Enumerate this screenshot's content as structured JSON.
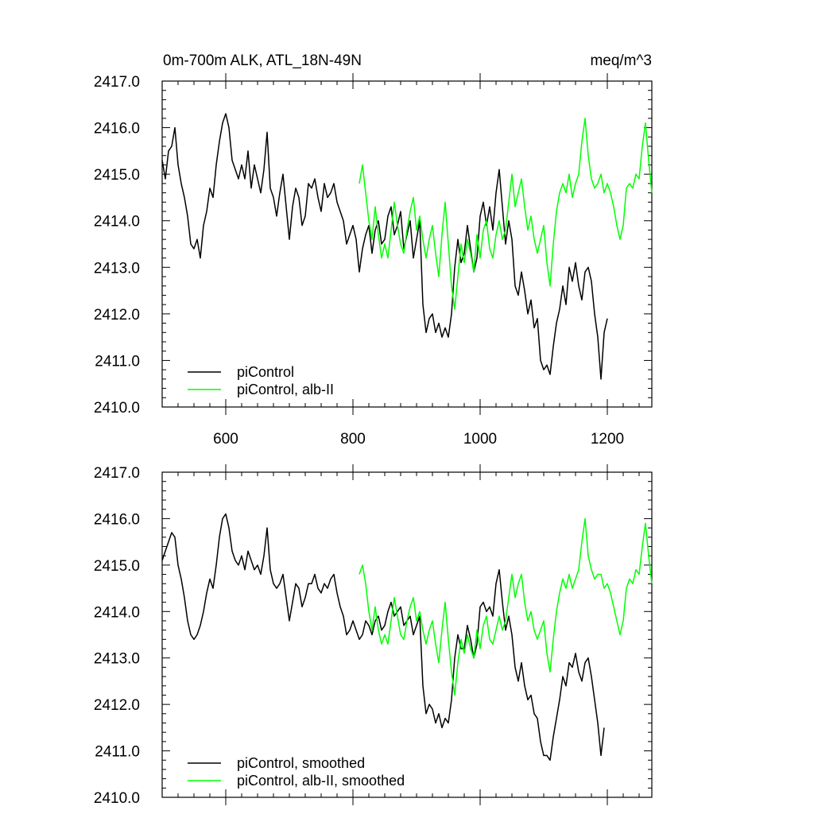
{
  "figure": {
    "title_left": "0m-700m ALK, ATL_18N-49N",
    "title_right": "meq/m^3"
  },
  "chart_data": [
    {
      "type": "line",
      "title": "",
      "xlabel": "",
      "ylabel": "",
      "xlim": [
        500,
        1270
      ],
      "ylim": [
        2410.0,
        2417.0
      ],
      "x_ticks": [
        600,
        800,
        1000,
        1200
      ],
      "y_ticks": [
        2410.0,
        2411.0,
        2412.0,
        2413.0,
        2414.0,
        2415.0,
        2416.0,
        2417.0
      ],
      "y_tick_labels": [
        "2410.0",
        "2411.0",
        "2412.0",
        "2413.0",
        "2414.0",
        "2415.0",
        "2416.0",
        "2417.0"
      ],
      "x_tick_labels_shown": true,
      "grid": false,
      "legend_position": "bottom-left",
      "series": [
        {
          "name": "piControl",
          "color": "#000000",
          "x": [
            500,
            505,
            510,
            515,
            520,
            525,
            530,
            535,
            540,
            545,
            550,
            555,
            560,
            565,
            570,
            575,
            580,
            585,
            590,
            595,
            600,
            605,
            610,
            615,
            620,
            625,
            630,
            635,
            640,
            645,
            650,
            655,
            660,
            665,
            670,
            675,
            680,
            685,
            690,
            695,
            700,
            705,
            710,
            715,
            720,
            725,
            730,
            735,
            740,
            745,
            750,
            755,
            760,
            765,
            770,
            775,
            780,
            785,
            790,
            795,
            800,
            805,
            810,
            815,
            820,
            825,
            830,
            835,
            840,
            845,
            850,
            855,
            860,
            865,
            870,
            875,
            880,
            885,
            890,
            895,
            900,
            905,
            910,
            915,
            920,
            925,
            930,
            935,
            940,
            945,
            950,
            955,
            960,
            965,
            970,
            975,
            980,
            985,
            990,
            995,
            1000,
            1005,
            1010,
            1015,
            1020,
            1025,
            1030,
            1035,
            1040,
            1045,
            1050,
            1055,
            1060,
            1065,
            1070,
            1075,
            1080,
            1085,
            1090,
            1095,
            1100,
            1105,
            1110,
            1115,
            1120,
            1125,
            1130,
            1135,
            1140,
            1145,
            1150,
            1155,
            1160,
            1165,
            1170,
            1175,
            1180,
            1185,
            1190,
            1195,
            1200
          ],
          "values": [
            2415.3,
            2414.9,
            2415.5,
            2415.6,
            2416.0,
            2415.2,
            2414.8,
            2414.5,
            2414.1,
            2413.5,
            2413.4,
            2413.6,
            2413.2,
            2413.9,
            2414.2,
            2414.7,
            2414.5,
            2415.2,
            2415.7,
            2416.1,
            2416.3,
            2416.0,
            2415.3,
            2415.1,
            2414.9,
            2415.2,
            2414.9,
            2415.5,
            2414.7,
            2415.2,
            2414.9,
            2414.6,
            2415.1,
            2415.9,
            2414.7,
            2414.5,
            2414.1,
            2414.6,
            2415.0,
            2414.3,
            2413.6,
            2414.3,
            2414.7,
            2414.5,
            2413.9,
            2414.1,
            2414.8,
            2414.7,
            2414.9,
            2414.5,
            2414.2,
            2414.8,
            2414.5,
            2414.6,
            2414.8,
            2414.4,
            2414.2,
            2414.0,
            2413.5,
            2413.7,
            2413.9,
            2413.6,
            2412.9,
            2413.4,
            2413.7,
            2413.9,
            2413.3,
            2413.8,
            2414.0,
            2413.5,
            2413.6,
            2414.1,
            2414.3,
            2413.7,
            2413.9,
            2414.2,
            2413.4,
            2413.7,
            2414.0,
            2413.2,
            2413.6,
            2414.0,
            2412.2,
            2411.6,
            2411.9,
            2412.0,
            2411.6,
            2411.8,
            2411.5,
            2411.7,
            2411.5,
            2412.0,
            2413.0,
            2413.6,
            2413.1,
            2413.3,
            2413.9,
            2413.4,
            2412.9,
            2413.2,
            2414.1,
            2414.4,
            2413.9,
            2414.3,
            2413.8,
            2414.6,
            2415.1,
            2414.3,
            2413.5,
            2414.0,
            2413.6,
            2412.6,
            2412.4,
            2412.9,
            2412.5,
            2412.0,
            2412.3,
            2411.7,
            2411.9,
            2411.0,
            2410.8,
            2410.9,
            2410.7,
            2411.3,
            2411.8,
            2412.1,
            2412.6,
            2412.2,
            2413.0,
            2412.7,
            2413.1,
            2412.6,
            2412.3,
            2412.9,
            2413.0,
            2412.7,
            2412.0,
            2411.5,
            2410.6,
            2411.6,
            2411.9
          ]
        },
        {
          "name": "piControl, alb-II",
          "color": "#00ff00",
          "x": [
            810,
            815,
            820,
            825,
            830,
            835,
            840,
            845,
            850,
            855,
            860,
            865,
            870,
            875,
            880,
            885,
            890,
            895,
            900,
            905,
            910,
            915,
            920,
            925,
            930,
            935,
            940,
            945,
            950,
            955,
            960,
            965,
            970,
            975,
            980,
            985,
            990,
            995,
            1000,
            1005,
            1010,
            1015,
            1020,
            1025,
            1030,
            1035,
            1040,
            1045,
            1050,
            1055,
            1060,
            1065,
            1070,
            1075,
            1080,
            1085,
            1090,
            1095,
            1100,
            1105,
            1110,
            1115,
            1120,
            1125,
            1130,
            1135,
            1140,
            1145,
            1150,
            1155,
            1160,
            1165,
            1170,
            1175,
            1180,
            1185,
            1190,
            1195,
            1200,
            1205,
            1210,
            1215,
            1220,
            1225,
            1230,
            1235,
            1240,
            1245,
            1250,
            1255,
            1260,
            1265,
            1270
          ],
          "values": [
            2414.8,
            2415.2,
            2414.6,
            2414.0,
            2413.6,
            2414.3,
            2413.7,
            2413.2,
            2413.5,
            2413.2,
            2413.8,
            2414.4,
            2413.9,
            2413.5,
            2413.3,
            2413.8,
            2414.2,
            2414.5,
            2413.8,
            2414.1,
            2413.6,
            2413.2,
            2413.6,
            2413.9,
            2413.3,
            2412.8,
            2413.7,
            2414.4,
            2413.5,
            2412.6,
            2412.1,
            2412.8,
            2413.5,
            2413.1,
            2413.6,
            2413.3,
            2412.9,
            2413.7,
            2413.2,
            2413.8,
            2414.0,
            2413.4,
            2413.2,
            2413.7,
            2414.0,
            2413.6,
            2413.8,
            2414.4,
            2415.0,
            2414.3,
            2414.6,
            2414.9,
            2414.3,
            2413.8,
            2414.1,
            2413.6,
            2413.3,
            2413.6,
            2413.9,
            2413.1,
            2412.6,
            2413.5,
            2414.2,
            2414.6,
            2414.8,
            2414.6,
            2415.0,
            2414.5,
            2414.8,
            2415.0,
            2415.7,
            2416.2,
            2415.4,
            2414.9,
            2414.7,
            2414.8,
            2415.0,
            2414.6,
            2414.8,
            2414.6,
            2414.3,
            2413.9,
            2413.6,
            2413.9,
            2414.7,
            2414.8,
            2414.7,
            2415.0,
            2414.9,
            2415.6,
            2416.1,
            2415.3,
            2414.6
          ]
        }
      ]
    },
    {
      "type": "line",
      "title": "",
      "xlabel": "",
      "ylabel": "",
      "xlim": [
        500,
        1270
      ],
      "ylim": [
        2410.0,
        2417.0
      ],
      "x_ticks": [
        600,
        800,
        1000,
        1200
      ],
      "y_ticks": [
        2410.0,
        2411.0,
        2412.0,
        2413.0,
        2414.0,
        2415.0,
        2416.0,
        2417.0
      ],
      "y_tick_labels": [
        "2410.0",
        "2411.0",
        "2412.0",
        "2413.0",
        "2414.0",
        "2415.0",
        "2416.0",
        "2417.0"
      ],
      "x_tick_labels_shown": false,
      "grid": false,
      "legend_position": "bottom-left",
      "series": [
        {
          "name": "piControl, smoothed",
          "color": "#000000",
          "x": [
            500,
            505,
            510,
            515,
            520,
            525,
            530,
            535,
            540,
            545,
            550,
            555,
            560,
            565,
            570,
            575,
            580,
            585,
            590,
            595,
            600,
            605,
            610,
            615,
            620,
            625,
            630,
            635,
            640,
            645,
            650,
            655,
            660,
            665,
            670,
            675,
            680,
            685,
            690,
            695,
            700,
            705,
            710,
            715,
            720,
            725,
            730,
            735,
            740,
            745,
            750,
            755,
            760,
            765,
            770,
            775,
            780,
            785,
            790,
            795,
            800,
            805,
            810,
            815,
            820,
            825,
            830,
            835,
            840,
            845,
            850,
            855,
            860,
            865,
            870,
            875,
            880,
            885,
            890,
            895,
            900,
            905,
            910,
            915,
            920,
            925,
            930,
            935,
            940,
            945,
            950,
            955,
            960,
            965,
            970,
            975,
            980,
            985,
            990,
            995,
            1000,
            1005,
            1010,
            1015,
            1020,
            1025,
            1030,
            1035,
            1040,
            1045,
            1050,
            1055,
            1060,
            1065,
            1070,
            1075,
            1080,
            1085,
            1090,
            1095,
            1100,
            1105,
            1110,
            1115,
            1120,
            1125,
            1130,
            1135,
            1140,
            1145,
            1150,
            1155,
            1160,
            1165,
            1170,
            1175,
            1180,
            1185,
            1190,
            1195
          ],
          "values": [
            2415.1,
            2415.3,
            2415.5,
            2415.7,
            2415.6,
            2415.0,
            2414.7,
            2414.3,
            2413.8,
            2413.5,
            2413.4,
            2413.5,
            2413.7,
            2414.0,
            2414.4,
            2414.7,
            2414.5,
            2415.0,
            2415.6,
            2416.0,
            2416.1,
            2415.8,
            2415.3,
            2415.1,
            2415.0,
            2415.2,
            2414.9,
            2415.3,
            2415.1,
            2414.9,
            2415.0,
            2414.8,
            2415.2,
            2415.8,
            2414.9,
            2414.6,
            2414.5,
            2414.6,
            2414.8,
            2414.3,
            2413.8,
            2414.2,
            2414.6,
            2414.5,
            2414.1,
            2414.3,
            2414.6,
            2414.6,
            2414.8,
            2414.5,
            2414.4,
            2414.6,
            2414.5,
            2414.7,
            2414.8,
            2414.4,
            2414.1,
            2413.9,
            2413.5,
            2413.6,
            2413.8,
            2413.6,
            2413.4,
            2413.5,
            2413.8,
            2413.7,
            2413.5,
            2413.8,
            2413.9,
            2413.6,
            2413.7,
            2414.0,
            2414.2,
            2413.9,
            2414.0,
            2414.1,
            2413.7,
            2413.8,
            2413.9,
            2413.5,
            2413.7,
            2413.9,
            2412.4,
            2411.8,
            2412.0,
            2411.9,
            2411.6,
            2411.8,
            2411.5,
            2411.7,
            2411.6,
            2412.1,
            2413.0,
            2413.5,
            2413.2,
            2413.2,
            2413.7,
            2413.4,
            2413.0,
            2413.3,
            2414.1,
            2414.2,
            2414.0,
            2414.1,
            2413.9,
            2414.6,
            2414.9,
            2414.2,
            2413.6,
            2413.9,
            2413.5,
            2412.8,
            2412.5,
            2412.9,
            2412.4,
            2412.1,
            2412.2,
            2411.8,
            2411.7,
            2411.2,
            2410.9,
            2410.9,
            2410.8,
            2411.3,
            2411.7,
            2412.1,
            2412.6,
            2412.4,
            2412.9,
            2412.8,
            2413.1,
            2412.7,
            2412.5,
            2412.9,
            2413.0,
            2412.6,
            2412.1,
            2411.6,
            2410.9,
            2411.5
          ]
        },
        {
          "name": "piControl, alb-II, smoothed",
          "color": "#00ff00",
          "x": [
            810,
            815,
            820,
            825,
            830,
            835,
            840,
            845,
            850,
            855,
            860,
            865,
            870,
            875,
            880,
            885,
            890,
            895,
            900,
            905,
            910,
            915,
            920,
            925,
            930,
            935,
            940,
            945,
            950,
            955,
            960,
            965,
            970,
            975,
            980,
            985,
            990,
            995,
            1000,
            1005,
            1010,
            1015,
            1020,
            1025,
            1030,
            1035,
            1040,
            1045,
            1050,
            1055,
            1060,
            1065,
            1070,
            1075,
            1080,
            1085,
            1090,
            1095,
            1100,
            1105,
            1110,
            1115,
            1120,
            1125,
            1130,
            1135,
            1140,
            1145,
            1150,
            1155,
            1160,
            1165,
            1170,
            1175,
            1180,
            1185,
            1190,
            1195,
            1200,
            1205,
            1210,
            1215,
            1220,
            1225,
            1230,
            1235,
            1240,
            1245,
            1250,
            1255,
            1260,
            1265,
            1270
          ],
          "values": [
            2414.8,
            2415.0,
            2414.6,
            2414.0,
            2413.6,
            2414.1,
            2413.6,
            2413.3,
            2413.5,
            2413.3,
            2413.8,
            2414.3,
            2413.9,
            2413.5,
            2413.4,
            2413.8,
            2414.1,
            2414.3,
            2413.8,
            2414.0,
            2413.6,
            2413.3,
            2413.6,
            2413.8,
            2413.3,
            2412.9,
            2413.6,
            2414.2,
            2413.4,
            2412.7,
            2412.2,
            2412.9,
            2413.4,
            2413.1,
            2413.5,
            2413.2,
            2413.0,
            2413.6,
            2413.2,
            2413.7,
            2413.9,
            2413.4,
            2413.3,
            2413.6,
            2413.9,
            2413.6,
            2413.8,
            2414.3,
            2414.8,
            2414.3,
            2414.6,
            2414.8,
            2414.2,
            2413.8,
            2414.0,
            2413.6,
            2413.4,
            2413.6,
            2413.8,
            2413.1,
            2412.7,
            2413.4,
            2414.0,
            2414.4,
            2414.7,
            2414.5,
            2414.8,
            2414.5,
            2414.7,
            2414.9,
            2415.5,
            2416.0,
            2415.2,
            2414.9,
            2414.7,
            2414.8,
            2414.8,
            2414.5,
            2414.6,
            2414.4,
            2414.1,
            2413.8,
            2413.5,
            2413.8,
            2414.5,
            2414.7,
            2414.6,
            2414.9,
            2414.8,
            2415.4,
            2415.9,
            2415.2,
            2414.6
          ]
        }
      ]
    }
  ]
}
